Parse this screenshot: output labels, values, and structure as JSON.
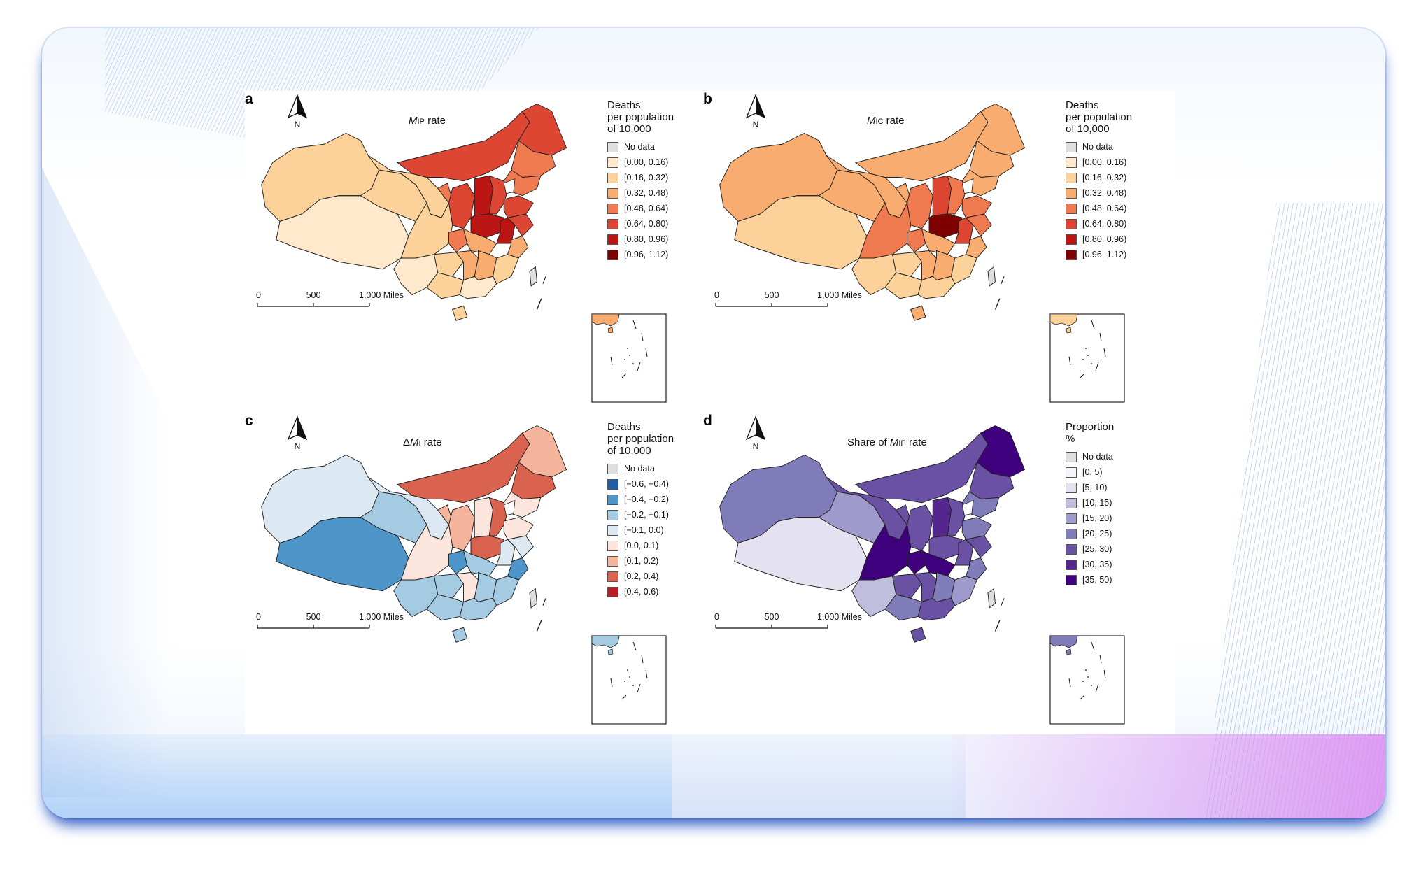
{
  "deco_colors": {
    "frame_shadow": "#1f4fbf",
    "bottom_left": "#b8d3f5",
    "bottom_right": "#da8cf0"
  },
  "panels": [
    {
      "id": "a",
      "title_var": "M",
      "title_sub": "IP",
      "title_suffix": " rate",
      "title_prefix": "",
      "legend_title": [
        "Deaths",
        "per population",
        "of 10,000"
      ],
      "legend": [
        {
          "label": "No data",
          "color": "#dedede"
        },
        {
          "label": "[0.00, 0.16)",
          "color": "#fee9cc"
        },
        {
          "label": "[0.16, 0.32)",
          "color": "#fcd29a"
        },
        {
          "label": "[0.32, 0.48)",
          "color": "#f9ac70"
        },
        {
          "label": "[0.48, 0.64)",
          "color": "#ef7a4f"
        },
        {
          "label": "[0.64, 0.80)",
          "color": "#dc4632"
        },
        {
          "label": "[0.80, 0.96)",
          "color": "#bc1614"
        },
        {
          "label": "[0.96, 1.12)",
          "color": "#7f0000"
        }
      ],
      "regions": {
        "xinjiang": 2,
        "tibet": 1,
        "qinghai": 2,
        "gansu": 2,
        "neimenggu": 5,
        "heilongjiang": 5,
        "jilin": 4,
        "liaoning": 4,
        "ningxia": 4,
        "shaanxi": 5,
        "shanxi": 6,
        "hebei": 5,
        "shandong": 5,
        "henan": 6,
        "sichuan": 2,
        "chongqing": 4,
        "hubei": 3,
        "anhui": 6,
        "jiangsu": 5,
        "yunnan": 1,
        "guizhou": 2,
        "hunan": 3,
        "jiangxi": 3,
        "zhejiang": 3,
        "fujian": 2,
        "guangxi": 2,
        "guangdong": 1,
        "hainan": 2,
        "taiwan": 0,
        "inset": 3
      }
    },
    {
      "id": "b",
      "title_var": "M",
      "title_sub": "IC",
      "title_suffix": " rate",
      "title_prefix": "",
      "legend_title": [
        "Deaths",
        "per population",
        "of 10,000"
      ],
      "legend": [
        {
          "label": "No data",
          "color": "#dedede"
        },
        {
          "label": "[0.00, 0.16)",
          "color": "#fee9cc"
        },
        {
          "label": "[0.16, 0.32)",
          "color": "#fcd29a"
        },
        {
          "label": "[0.32, 0.48)",
          "color": "#f9ac70"
        },
        {
          "label": "[0.48, 0.64)",
          "color": "#ef7a4f"
        },
        {
          "label": "[0.64, 0.80)",
          "color": "#dc4632"
        },
        {
          "label": "[0.80, 0.96)",
          "color": "#bc1614"
        },
        {
          "label": "[0.96, 1.12)",
          "color": "#7f0000"
        }
      ],
      "regions": {
        "xinjiang": 3,
        "tibet": 2,
        "qinghai": 3,
        "gansu": 3,
        "neimenggu": 3,
        "heilongjiang": 3,
        "jilin": 3,
        "liaoning": 3,
        "ningxia": 3,
        "shaanxi": 4,
        "shanxi": 5,
        "hebei": 4,
        "shandong": 4,
        "henan": 7,
        "sichuan": 4,
        "chongqing": 4,
        "hubei": 3,
        "anhui": 5,
        "jiangsu": 4,
        "yunnan": 2,
        "guizhou": 2,
        "hunan": 3,
        "jiangxi": 3,
        "zhejiang": 3,
        "fujian": 2,
        "guangxi": 2,
        "guangdong": 2,
        "hainan": 3,
        "taiwan": 0,
        "inset": 2
      }
    },
    {
      "id": "c",
      "title_var": "M",
      "title_sub": "I",
      "title_suffix": " rate",
      "title_prefix": "Δ",
      "legend_title": [
        "Deaths",
        "per population",
        "of 10,000"
      ],
      "legend": [
        {
          "label": "No data",
          "color": "#dedede"
        },
        {
          "label": "[−0.6, −0.4)",
          "color": "#1e5fa8"
        },
        {
          "label": "[−0.4, −0.2)",
          "color": "#4e95c9"
        },
        {
          "label": "[−0.2, −0.1)",
          "color": "#a4cbe2"
        },
        {
          "label": "[−0.1, 0.0)",
          "color": "#dce9f3"
        },
        {
          "label": "[0.0, 0.1)",
          "color": "#fbe5dc"
        },
        {
          "label": "[0.1, 0.2)",
          "color": "#f4b59c"
        },
        {
          "label": "[0.2, 0.4)",
          "color": "#d9634f"
        },
        {
          "label": "[0.4, 0.6)",
          "color": "#b81d25"
        }
      ],
      "regions": {
        "xinjiang": 4,
        "tibet": 2,
        "qinghai": 3,
        "gansu": 4,
        "neimenggu": 7,
        "heilongjiang": 6,
        "jilin": 7,
        "liaoning": 5,
        "ningxia": 6,
        "shaanxi": 6,
        "shanxi": 5,
        "hebei": 7,
        "shandong": 5,
        "henan": 7,
        "sichuan": 5,
        "chongqing": 2,
        "hubei": 3,
        "anhui": 4,
        "jiangsu": 4,
        "yunnan": 3,
        "guizhou": 3,
        "hunan": 5,
        "jiangxi": 3,
        "zhejiang": 2,
        "fujian": 3,
        "guangxi": 3,
        "guangdong": 3,
        "hainan": 3,
        "taiwan": 0,
        "inset": 3
      }
    },
    {
      "id": "d",
      "title_var": "M",
      "title_sub": "IP",
      "title_suffix": " rate",
      "title_prefix": "Share of ",
      "legend_title": [
        "Proportion",
        "%"
      ],
      "legend": [
        {
          "label": "No data",
          "color": "#dedede"
        },
        {
          "label": "[0, 5)",
          "color": "#f6f4fa"
        },
        {
          "label": "[5, 10)",
          "color": "#e4e2f0"
        },
        {
          "label": "[10, 15)",
          "color": "#c0bedd"
        },
        {
          "label": "[15, 20)",
          "color": "#9e9acb"
        },
        {
          "label": "[20, 25)",
          "color": "#807cba"
        },
        {
          "label": "[25, 30)",
          "color": "#6a51a3"
        },
        {
          "label": "[30, 35)",
          "color": "#54278f"
        },
        {
          "label": "[35, 50)",
          "color": "#3f007d"
        }
      ],
      "regions": {
        "xinjiang": 5,
        "tibet": 2,
        "qinghai": 4,
        "gansu": 6,
        "neimenggu": 6,
        "heilongjiang": 8,
        "jilin": 6,
        "liaoning": 5,
        "ningxia": 6,
        "shaanxi": 6,
        "shanxi": 7,
        "hebei": 6,
        "shandong": 5,
        "henan": 6,
        "sichuan": 8,
        "chongqing": 8,
        "hubei": 8,
        "anhui": 6,
        "jiangsu": 6,
        "yunnan": 3,
        "guizhou": 6,
        "hunan": 6,
        "jiangxi": 5,
        "zhejiang": 5,
        "fujian": 4,
        "guangxi": 5,
        "guangdong": 6,
        "hainan": 6,
        "taiwan": 0,
        "inset": 5
      }
    }
  ],
  "north_label": "N",
  "scale_labels": [
    "0",
    "500",
    "1,000 Miles"
  ]
}
